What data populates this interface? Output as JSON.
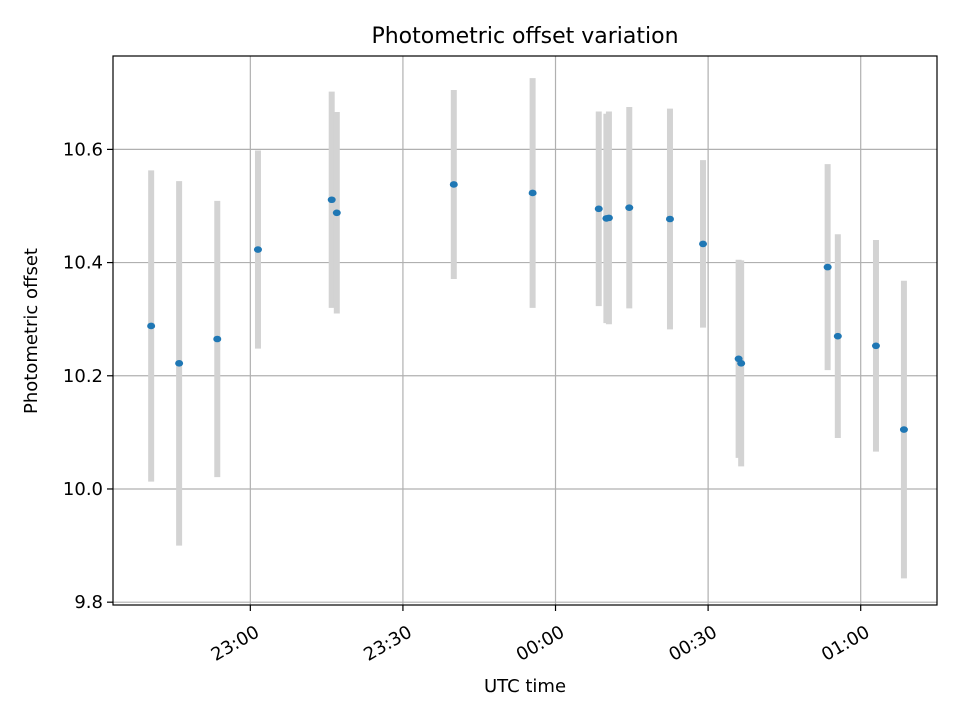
{
  "chart_data": {
    "type": "scatter",
    "title": "Photometric offset variation",
    "xlabel": "UTC time",
    "ylabel": "Photometric offset",
    "xlim": [
      "22:33:00",
      "01:15:00"
    ],
    "ylim": [
      9.795,
      10.765
    ],
    "x_ticks": [
      "23:00",
      "23:30",
      "00:00",
      "00:30",
      "01:00"
    ],
    "x_tick_times": [
      "23:00:00",
      "23:30:00",
      "00:00:00",
      "00:30:00",
      "01:00:00"
    ],
    "y_ticks": [
      "9.8",
      "10.0",
      "10.2",
      "10.4",
      "10.6"
    ],
    "grid": true,
    "colors": {
      "points": "#1f77b4",
      "errorbars": "#d3d3d3",
      "grid": "#b0b0b0"
    },
    "points": [
      {
        "x": "22:40:30",
        "y": 10.288,
        "err": 0.275
      },
      {
        "x": "22:46:00",
        "y": 10.222,
        "err": 0.322
      },
      {
        "x": "22:53:30",
        "y": 10.265,
        "err": 0.244
      },
      {
        "x": "23:01:30",
        "y": 10.423,
        "err": 0.175
      },
      {
        "x": "23:16:00",
        "y": 10.511,
        "err": 0.191
      },
      {
        "x": "23:17:00",
        "y": 10.488,
        "err": 0.178
      },
      {
        "x": "23:40:00",
        "y": 10.538,
        "err": 0.167
      },
      {
        "x": "23:55:30",
        "y": 10.523,
        "err": 0.203
      },
      {
        "x": "00:08:30",
        "y": 10.495,
        "err": 0.172
      },
      {
        "x": "00:10:00",
        "y": 10.478,
        "err": 0.185
      },
      {
        "x": "00:10:30",
        "y": 10.479,
        "err": 0.188
      },
      {
        "x": "00:14:30",
        "y": 10.497,
        "err": 0.178
      },
      {
        "x": "00:22:30",
        "y": 10.477,
        "err": 0.195
      },
      {
        "x": "00:29:00",
        "y": 10.433,
        "err": 0.148
      },
      {
        "x": "00:36:00",
        "y": 10.23,
        "err": 0.175
      },
      {
        "x": "00:36:30",
        "y": 10.222,
        "err": 0.182
      },
      {
        "x": "00:53:30",
        "y": 10.392,
        "err": 0.182
      },
      {
        "x": "00:55:30",
        "y": 10.27,
        "err": 0.18
      },
      {
        "x": "01:03:00",
        "y": 10.253,
        "err": 0.187
      },
      {
        "x": "01:08:30",
        "y": 10.105,
        "err": 0.263
      }
    ]
  }
}
